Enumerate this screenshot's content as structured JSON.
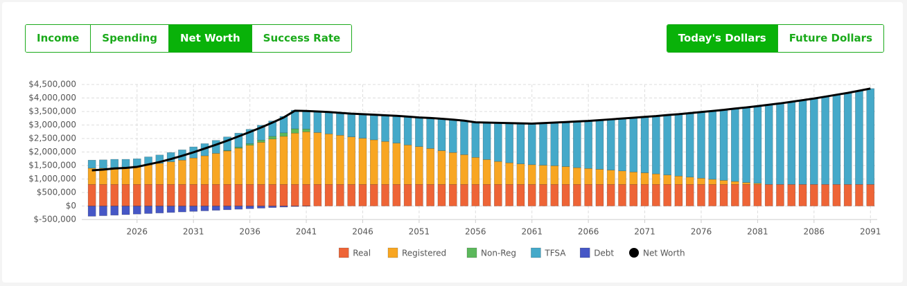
{
  "controls": {
    "views": [
      "Income",
      "Spending",
      "Net Worth",
      "Success Rate"
    ],
    "active_view": 2,
    "dollars": [
      "Today's Dollars",
      "Future Dollars"
    ],
    "active_dollars": 0
  },
  "chart_data": {
    "type": "bar",
    "stacked": true,
    "x": [
      2022,
      2023,
      2024,
      2025,
      2026,
      2027,
      2028,
      2029,
      2030,
      2031,
      2032,
      2033,
      2034,
      2035,
      2036,
      2037,
      2038,
      2039,
      2040,
      2041,
      2042,
      2043,
      2044,
      2045,
      2046,
      2047,
      2048,
      2049,
      2050,
      2051,
      2052,
      2053,
      2054,
      2055,
      2056,
      2057,
      2058,
      2059,
      2060,
      2061,
      2062,
      2063,
      2064,
      2065,
      2066,
      2067,
      2068,
      2069,
      2070,
      2071,
      2072,
      2073,
      2074,
      2075,
      2076,
      2077,
      2078,
      2079,
      2080,
      2081,
      2082,
      2083,
      2084,
      2085,
      2086,
      2087,
      2088,
      2089,
      2090,
      2091
    ],
    "xlim": [
      2021.1,
      2091.6
    ],
    "xticks": [
      2026,
      2031,
      2036,
      2041,
      2046,
      2051,
      2056,
      2061,
      2066,
      2071,
      2076,
      2081,
      2086,
      2091
    ],
    "ylim": [
      -500000,
      4500000
    ],
    "yticks": [
      {
        "value": -500000,
        "label": "$-500,000"
      },
      {
        "value": 0,
        "label": "$0"
      },
      {
        "value": 500000,
        "label": "$500,000"
      },
      {
        "value": 1000000,
        "label": "$1,000,000"
      },
      {
        "value": 1500000,
        "label": "$1,500,000"
      },
      {
        "value": 2000000,
        "label": "$2,000,000"
      },
      {
        "value": 2500000,
        "label": "$2,500,000"
      },
      {
        "value": 3000000,
        "label": "$3,000,000"
      },
      {
        "value": 3500000,
        "label": "$3,500,000"
      },
      {
        "value": 4000000,
        "label": "$4,000,000"
      },
      {
        "value": 4500000,
        "label": "$4,500,000"
      }
    ],
    "grid": true,
    "legend": "bottom",
    "series": [
      {
        "name": "Real",
        "color": "#ee6436",
        "values": [
          800000,
          800000,
          800000,
          800000,
          800000,
          800000,
          800000,
          800000,
          800000,
          800000,
          800000,
          800000,
          800000,
          800000,
          800000,
          800000,
          800000,
          800000,
          800000,
          800000,
          800000,
          800000,
          800000,
          800000,
          800000,
          800000,
          800000,
          800000,
          800000,
          800000,
          800000,
          800000,
          800000,
          800000,
          800000,
          800000,
          800000,
          800000,
          800000,
          800000,
          800000,
          800000,
          800000,
          800000,
          800000,
          800000,
          800000,
          800000,
          800000,
          800000,
          800000,
          800000,
          800000,
          800000,
          800000,
          800000,
          800000,
          800000,
          800000,
          800000,
          800000,
          800000,
          800000,
          800000,
          800000,
          800000,
          800000,
          800000,
          800000,
          800000
        ]
      },
      {
        "name": "Registered",
        "color": "#f8a622",
        "values": [
          600000,
          600000,
          620000,
          640000,
          680000,
          720000,
          780000,
          840000,
          900000,
          980000,
          1060000,
          1150000,
          1240000,
          1340000,
          1450000,
          1560000,
          1680000,
          1780000,
          1900000,
          1950000,
          1920000,
          1870000,
          1820000,
          1760000,
          1710000,
          1650000,
          1590000,
          1530000,
          1460000,
          1400000,
          1330000,
          1250000,
          1180000,
          1100000,
          1000000,
          920000,
          850000,
          800000,
          760000,
          730000,
          710000,
          690000,
          660000,
          620000,
          590000,
          560000,
          530000,
          500000,
          460000,
          430000,
          390000,
          350000,
          310000,
          270000,
          230000,
          190000,
          150000,
          110000,
          70000,
          40000,
          0,
          0,
          0,
          0,
          0,
          0,
          0,
          0,
          0,
          0
        ]
      },
      {
        "name": "Non-Reg",
        "color": "#5cb85c",
        "values": [
          0,
          0,
          0,
          0,
          0,
          0,
          0,
          0,
          0,
          0,
          0,
          0,
          20000,
          40000,
          60000,
          80000,
          100000,
          130000,
          160000,
          100000,
          0,
          0,
          0,
          0,
          0,
          0,
          0,
          0,
          0,
          0,
          0,
          0,
          0,
          0,
          0,
          0,
          0,
          0,
          0,
          0,
          0,
          0,
          0,
          0,
          0,
          0,
          0,
          0,
          0,
          0,
          0,
          0,
          0,
          0,
          0,
          0,
          0,
          0,
          0,
          0,
          0,
          0,
          0,
          0,
          0,
          0,
          0,
          0,
          0,
          0
        ]
      },
      {
        "name": "TFSA",
        "color": "#45a9c9",
        "values": [
          300000,
          310000,
          310000,
          290000,
          270000,
          300000,
          310000,
          340000,
          380000,
          410000,
          450000,
          480000,
          500000,
          520000,
          530000,
          550000,
          570000,
          610000,
          690000,
          680000,
          780000,
          810000,
          830000,
          860000,
          890000,
          930000,
          970000,
          1010000,
          1050000,
          1080000,
          1130000,
          1180000,
          1220000,
          1260000,
          1300000,
          1370000,
          1430000,
          1470000,
          1500000,
          1520000,
          1560000,
          1600000,
          1650000,
          1710000,
          1760000,
          1820000,
          1880000,
          1940000,
          2010000,
          2070000,
          2140000,
          2220000,
          2290000,
          2370000,
          2450000,
          2530000,
          2610000,
          2700000,
          2780000,
          2860000,
          2950000,
          3000000,
          3060000,
          3120000,
          3180000,
          3250000,
          3320000,
          3390000,
          3470000,
          3550000
        ]
      },
      {
        "name": "Debt",
        "color": "#4657c6",
        "values": [
          -380000,
          -360000,
          -340000,
          -320000,
          -300000,
          -280000,
          -260000,
          -240000,
          -220000,
          -200000,
          -180000,
          -160000,
          -140000,
          -120000,
          -100000,
          -80000,
          -60000,
          -40000,
          -20000,
          -10000,
          0,
          0,
          0,
          0,
          0,
          0,
          0,
          0,
          0,
          0,
          0,
          0,
          0,
          0,
          0,
          0,
          0,
          0,
          0,
          0,
          0,
          0,
          0,
          0,
          0,
          0,
          0,
          0,
          0,
          0,
          0,
          0,
          0,
          0,
          0,
          0,
          0,
          0,
          0,
          0,
          0,
          0,
          0,
          0,
          0,
          0,
          0,
          0,
          0,
          0
        ]
      },
      {
        "name": "Net Worth",
        "type": "line",
        "color": "#000000",
        "values": [
          1320000,
          1350000,
          1390000,
          1410000,
          1450000,
          1540000,
          1630000,
          1740000,
          1860000,
          1990000,
          2130000,
          2270000,
          2420000,
          2580000,
          2740000,
          2910000,
          3090000,
          3280000,
          3530000,
          3520000,
          3500000,
          3480000,
          3450000,
          3420000,
          3400000,
          3380000,
          3360000,
          3340000,
          3310000,
          3280000,
          3260000,
          3230000,
          3200000,
          3160000,
          3100000,
          3090000,
          3080000,
          3070000,
          3060000,
          3050000,
          3070000,
          3090000,
          3110000,
          3130000,
          3150000,
          3180000,
          3210000,
          3240000,
          3270000,
          3300000,
          3330000,
          3370000,
          3400000,
          3440000,
          3480000,
          3520000,
          3560000,
          3610000,
          3650000,
          3700000,
          3750000,
          3800000,
          3860000,
          3920000,
          3980000,
          4050000,
          4120000,
          4190000,
          4270000,
          4350000
        ]
      }
    ]
  }
}
